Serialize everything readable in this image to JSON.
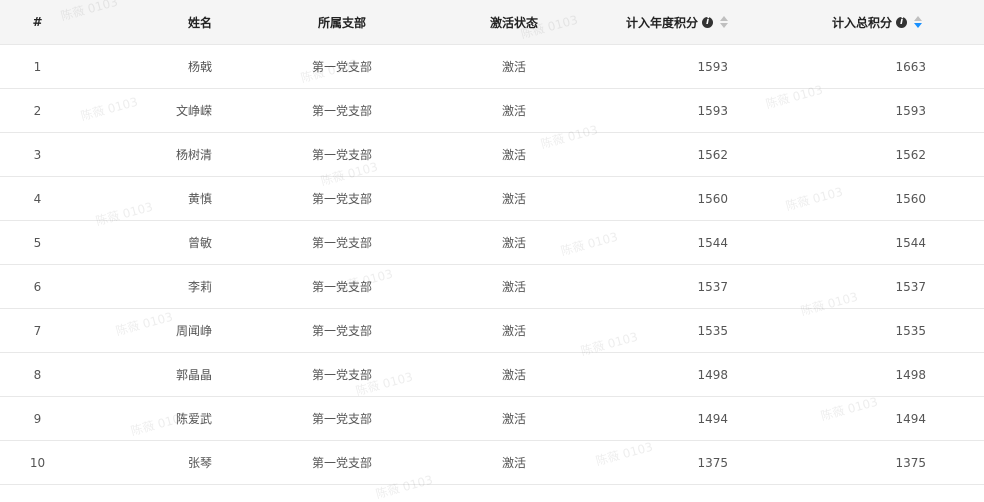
{
  "watermark": "陈薇 0103",
  "columns": {
    "index": "#",
    "name": "姓名",
    "branch": "所属支部",
    "status": "激活状态",
    "annual": "计入年度积分",
    "total": "计入总积分"
  },
  "sort": {
    "column": "total",
    "order": "descending",
    "active_color": "#1890ff"
  },
  "rows": [
    {
      "index": "1",
      "name": "杨戟",
      "branch": "第一党支部",
      "status": "激活",
      "annual": "1593",
      "total": "1663"
    },
    {
      "index": "2",
      "name": "文峥嵘",
      "branch": "第一党支部",
      "status": "激活",
      "annual": "1593",
      "total": "1593"
    },
    {
      "index": "3",
      "name": "杨树清",
      "branch": "第一党支部",
      "status": "激活",
      "annual": "1562",
      "total": "1562"
    },
    {
      "index": "4",
      "name": "黄慎",
      "branch": "第一党支部",
      "status": "激活",
      "annual": "1560",
      "total": "1560"
    },
    {
      "index": "5",
      "name": "曾敏",
      "branch": "第一党支部",
      "status": "激活",
      "annual": "1544",
      "total": "1544"
    },
    {
      "index": "6",
      "name": "李莉",
      "branch": "第一党支部",
      "status": "激活",
      "annual": "1537",
      "total": "1537"
    },
    {
      "index": "7",
      "name": "周闻峥",
      "branch": "第一党支部",
      "status": "激活",
      "annual": "1535",
      "total": "1535"
    },
    {
      "index": "8",
      "name": "郭晶晶",
      "branch": "第一党支部",
      "status": "激活",
      "annual": "1498",
      "total": "1498"
    },
    {
      "index": "9",
      "name": "陈爱武",
      "branch": "第一党支部",
      "status": "激活",
      "annual": "1494",
      "total": "1494"
    },
    {
      "index": "10",
      "name": "张琴",
      "branch": "第一党支部",
      "status": "激活",
      "annual": "1375",
      "total": "1375"
    }
  ]
}
